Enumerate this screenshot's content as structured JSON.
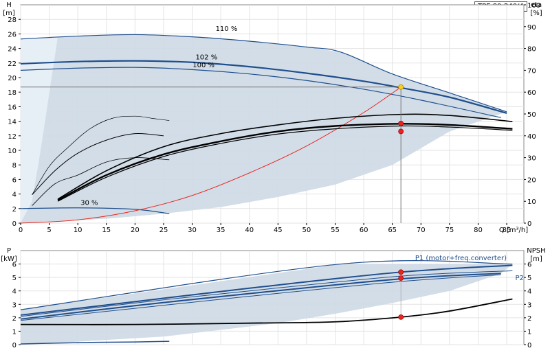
{
  "model": "TPE 80-240/4",
  "chart_data": [
    {
      "type": "line",
      "panel": "head",
      "y_label_top": "H",
      "y_unit": "[m]",
      "y2_label_top": "eta",
      "y2_unit": "[%]",
      "x_label": "Q [m³/h]",
      "xlim": [
        0,
        88
      ],
      "ylim": [
        0,
        30
      ],
      "y2lim": [
        0,
        100
      ],
      "xticks": [
        0,
        5,
        10,
        15,
        20,
        25,
        30,
        35,
        40,
        45,
        50,
        55,
        60,
        65,
        70,
        75,
        80,
        85
      ],
      "yticks": [
        0,
        2,
        4,
        6,
        8,
        10,
        12,
        14,
        16,
        18,
        20,
        22,
        24,
        26,
        28
      ],
      "y2ticks": [
        0,
        10,
        20,
        30,
        40,
        50,
        60,
        70,
        80,
        90,
        100
      ],
      "curve_labels": [
        "110 %",
        "102 %",
        "100 %",
        "30 %"
      ],
      "series": [
        {
          "role": "H_110",
          "color": "#1f4e8c",
          "width": 1.2,
          "x": [
            0,
            10,
            20,
            30,
            40,
            50,
            56,
            65,
            75,
            85
          ],
          "y": [
            25.3,
            25.7,
            25.9,
            25.6,
            25,
            24.2,
            23.5,
            20.5,
            17.9,
            15.3
          ]
        },
        {
          "role": "H_102",
          "color": "#1f4e8c",
          "width": 2.2,
          "x": [
            0,
            10,
            20,
            30,
            40,
            50,
            60,
            66.5,
            75,
            85
          ],
          "y": [
            21.9,
            22.2,
            22.3,
            22.1,
            21.5,
            20.6,
            19.5,
            18.6,
            17.3,
            15.1
          ]
        },
        {
          "role": "H_100",
          "color": "#1f4e8c",
          "width": 1.2,
          "x": [
            0,
            10,
            20,
            30,
            40,
            50,
            60,
            70,
            84
          ],
          "y": [
            21,
            21.3,
            21.4,
            21.1,
            20.5,
            19.6,
            18.4,
            16.9,
            14.5
          ]
        },
        {
          "role": "H_30",
          "color": "#1f4e8c",
          "width": 1.2,
          "x": [
            0,
            10,
            20,
            26
          ],
          "y": [
            2,
            2.1,
            1.9,
            1.3
          ]
        },
        {
          "role": "system_curve",
          "color": "#e8261e",
          "width": 1,
          "x": [
            0,
            10,
            20,
            30,
            40,
            50,
            60,
            66.5
          ],
          "y": [
            0,
            0.45,
            1.7,
            3.8,
            6.9,
            10.6,
            15.2,
            18.7
          ]
        },
        {
          "role": "eta_top",
          "axis": "y2",
          "color": "#000",
          "width": 1.6,
          "x": [
            6.5,
            15,
            25,
            35,
            45,
            55,
            66.5,
            75,
            86
          ],
          "y": [
            11,
            24,
            35,
            41,
            45,
            48,
            49.8,
            49.3,
            46.5
          ]
        },
        {
          "role": "eta_main",
          "axis": "y2",
          "color": "#000",
          "width": 2.4,
          "x": [
            6.5,
            15,
            25,
            35,
            45,
            55,
            66.5,
            75,
            86
          ],
          "y": [
            10.5,
            22,
            31.5,
            37.5,
            42,
            44.5,
            45.5,
            45,
            43.2
          ]
        },
        {
          "role": "eta_mid",
          "axis": "y2",
          "color": "#000",
          "width": 1.2,
          "x": [
            6.5,
            15,
            25,
            35,
            45,
            55,
            66.5,
            75,
            86
          ],
          "y": [
            10,
            21,
            30.5,
            36.5,
            40.8,
            43.2,
            44.5,
            44,
            42.5
          ]
        },
        {
          "role": "eta_lowspeed",
          "axis": "y2",
          "color": "#000",
          "width": 1,
          "x": [
            2,
            6,
            10,
            15,
            20,
            25
          ],
          "y": [
            13,
            24,
            32,
            38,
            41,
            40
          ]
        },
        {
          "role": "eta_thin",
          "axis": "y2",
          "color": "#000",
          "width": 0.8,
          "x": [
            2,
            6,
            10,
            15,
            20,
            26
          ],
          "y": [
            8,
            18,
            22,
            28,
            30,
            29
          ]
        },
        {
          "role": "eta_arc",
          "axis": "y2",
          "color": "#000",
          "width": 0.7,
          "x": [
            2,
            5,
            8,
            12,
            16,
            20,
            23,
            26
          ],
          "y": [
            13,
            26,
            34,
            43,
            48,
            49,
            48,
            47
          ]
        }
      ],
      "envelope_shaded": {
        "color": "#cdd9e6",
        "x": [
          0,
          10,
          20,
          30,
          40,
          50,
          56,
          65,
          75,
          85,
          85,
          75,
          65,
          55,
          45,
          35,
          25,
          15,
          5,
          0
        ],
        "y": [
          25.3,
          25.7,
          25.9,
          25.6,
          25,
          24.2,
          23.5,
          20.5,
          17.9,
          15.3,
          15.3,
          12.6,
          8,
          5.3,
          3.6,
          2.2,
          1.3,
          0.6,
          0.25,
          0
        ]
      },
      "operating_points": [
        {
          "label": "duty",
          "x": 66.5,
          "y": 18.7,
          "color": "#f5d020"
        },
        {
          "label": "eta_a",
          "x": 66.5,
          "y": 13.7,
          "color": "#e8261e"
        },
        {
          "label": "eta_b",
          "x": 66.5,
          "y": 12.6,
          "color": "#e8261e"
        }
      ],
      "duty_crosshair": {
        "x": 66.5,
        "y": 18.7
      }
    },
    {
      "type": "line",
      "panel": "power",
      "y_label_top": "P",
      "y_unit": "[kW]",
      "y2_label_top": "NPSH",
      "y2_unit": "[m]",
      "xlim": [
        0,
        88
      ],
      "ylim": [
        0,
        7
      ],
      "y2lim": [
        0,
        7
      ],
      "yticks": [
        0,
        1,
        2,
        3,
        4,
        5,
        6
      ],
      "y2ticks": [
        0,
        1,
        2,
        3,
        4,
        5,
        6
      ],
      "series_labels": [
        "P1 (motor+freq.converter)",
        "P2"
      ],
      "series": [
        {
          "role": "P1_max",
          "color": "#1f4e8c",
          "width": 1.2,
          "x": [
            0,
            56,
            86
          ],
          "y": [
            2.6,
            6,
            6
          ]
        },
        {
          "role": "P1",
          "color": "#1f4e8c",
          "width": 2,
          "x": [
            0,
            20,
            40,
            66.5,
            86
          ],
          "y": [
            2.2,
            3.2,
            4.2,
            5.4,
            5.9
          ]
        },
        {
          "role": "P1_b",
          "color": "#1f4e8c",
          "width": 1,
          "x": [
            0,
            20,
            40,
            66.5,
            86
          ],
          "y": [
            2.1,
            3.1,
            4,
            5.1,
            5.5
          ]
        },
        {
          "role": "P2",
          "color": "#1f4e8c",
          "width": 2,
          "x": [
            0,
            20,
            40,
            66.5,
            84
          ],
          "y": [
            1.9,
            2.9,
            3.8,
            4.9,
            5.3
          ]
        },
        {
          "role": "P2_b",
          "color": "#1f4e8c",
          "width": 1,
          "x": [
            0,
            20,
            40,
            66.5,
            84
          ],
          "y": [
            1.8,
            2.7,
            3.6,
            4.7,
            5.2
          ]
        },
        {
          "role": "P_30",
          "color": "#1f4e8c",
          "width": 1.5,
          "x": [
            0,
            10,
            20,
            26
          ],
          "y": [
            0.05,
            0.15,
            0.2,
            0.25
          ]
        },
        {
          "role": "NPSH",
          "color": "#000",
          "width": 1.8,
          "x": [
            0,
            20,
            40,
            55,
            66.5,
            75,
            86
          ],
          "y": [
            1.5,
            1.5,
            1.6,
            1.7,
            2.05,
            2.5,
            3.4
          ]
        }
      ],
      "envelope_shaded": {
        "color": "#cdd9e6",
        "x": [
          0,
          56,
          86,
          84,
          75,
          65,
          55,
          45,
          35,
          25,
          15,
          5,
          0
        ],
        "y": [
          2.6,
          6,
          6,
          5.3,
          4,
          3.1,
          2.3,
          1.6,
          1.1,
          0.6,
          0.35,
          0.1,
          0.05
        ]
      },
      "operating_points": [
        {
          "label": "P1",
          "x": 66.5,
          "y": 5.4,
          "color": "#e8261e"
        },
        {
          "label": "P2",
          "x": 66.5,
          "y": 4.95,
          "color": "#e8261e"
        },
        {
          "label": "NPSH",
          "x": 66.5,
          "y": 2.05,
          "color": "#e8261e"
        }
      ]
    }
  ]
}
